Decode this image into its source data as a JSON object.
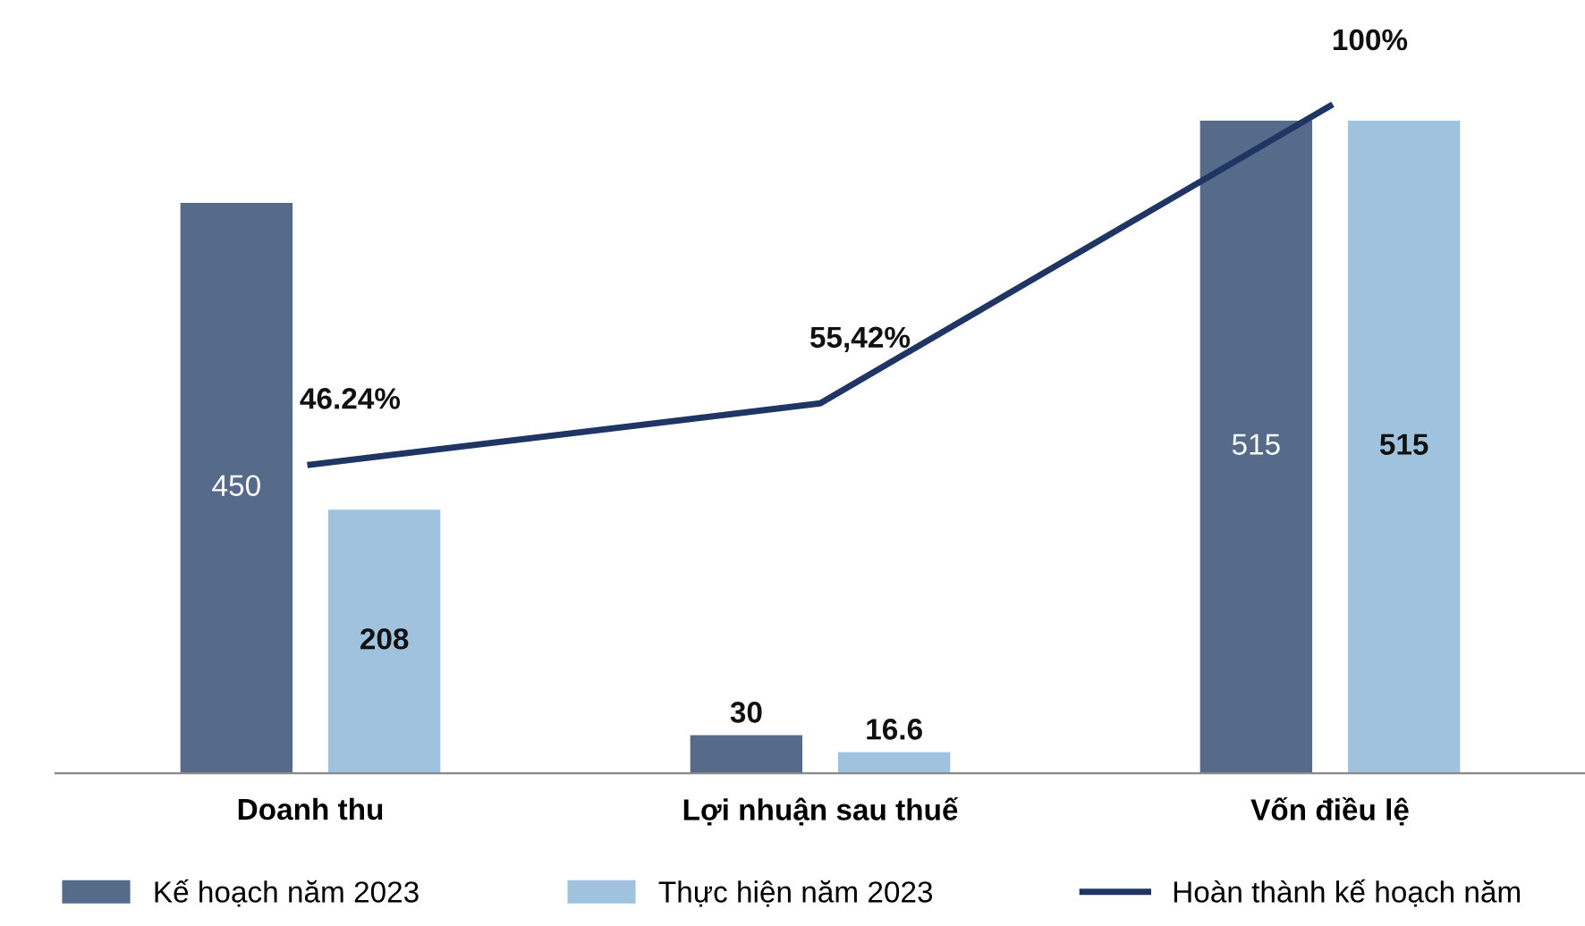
{
  "chart_data": {
    "type": "bar",
    "categories": [
      "Doanh thu",
      "Lợi nhuận sau thuế",
      "Vốn điều lệ"
    ],
    "series": [
      {
        "name": "Kế hoạch năm 2023",
        "color": "#566b8a",
        "values": [
          450,
          30,
          515
        ]
      },
      {
        "name": "Thực hiện năm 2023",
        "color": "#9fc3de",
        "values": [
          208,
          16.6,
          515
        ]
      },
      {
        "name": "Hoàn thành kế hoạch năm",
        "type": "line",
        "axis": "y2",
        "color": "#1f3564",
        "values": [
          46.24,
          55.42,
          100
        ],
        "value_labels": [
          "46.24%",
          "55,42%",
          "100%"
        ]
      }
    ],
    "data_labels": true,
    "tick_labels": "x",
    "legend": "bottom",
    "grid": false,
    "marker": "none",
    "line_style": "solid"
  }
}
